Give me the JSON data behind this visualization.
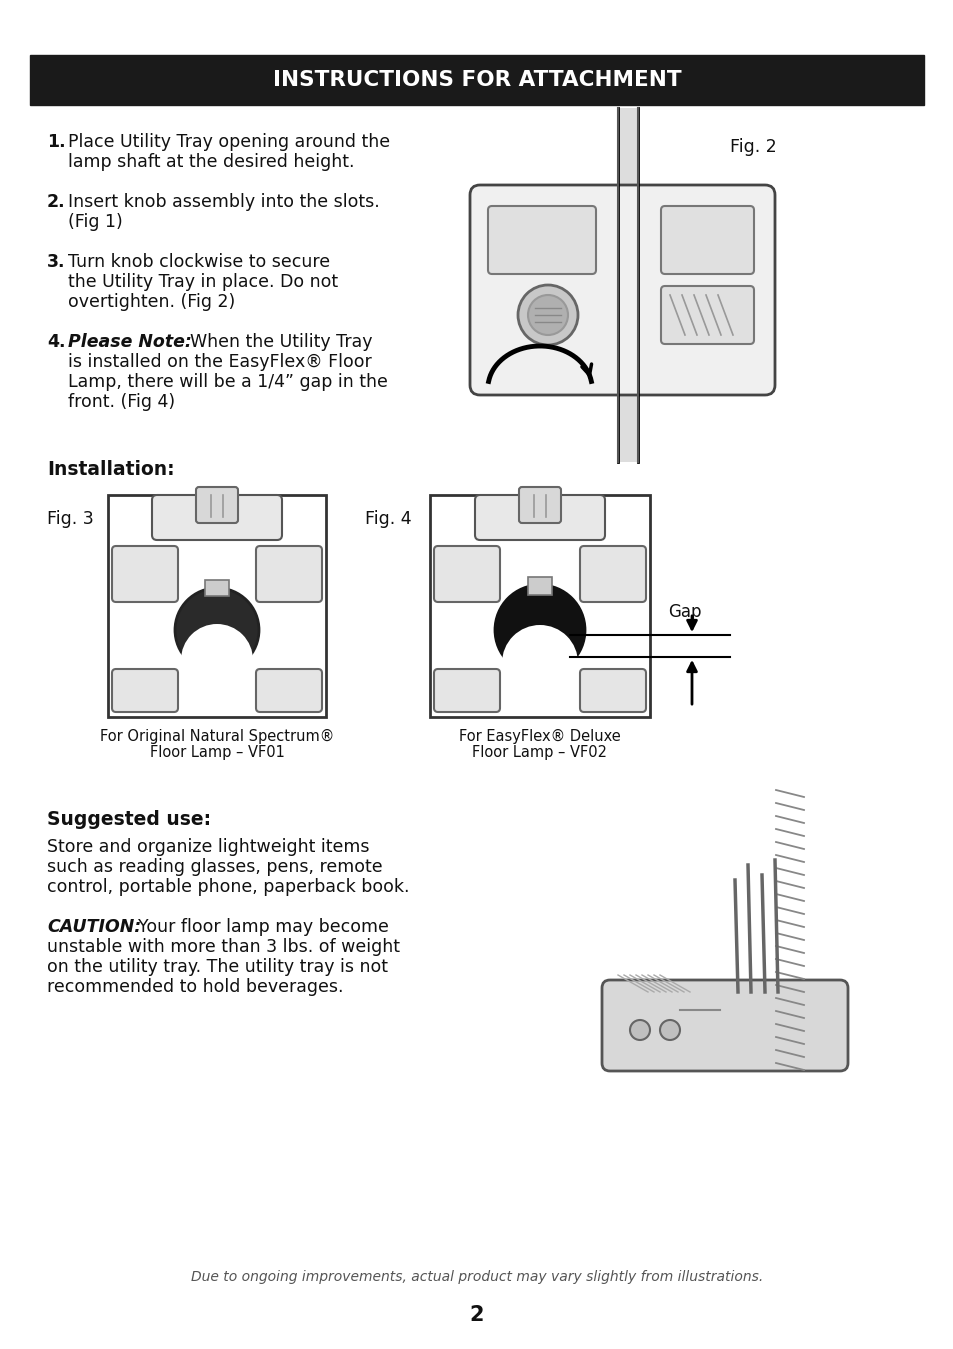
{
  "background_color": "#ffffff",
  "page_width": 9.54,
  "page_height": 13.49,
  "header_text": "INSTRUCTIONS FOR ATTACHMENT",
  "header_bg": "#1a1a1a",
  "header_text_color": "#ffffff",
  "fig2_label": "Fig. 2",
  "installation_label": "Installation:",
  "fig3_label": "Fig. 3",
  "fig4_label": "Fig. 4",
  "gap_label": "Gap",
  "caption3_line1": "For Original Natural Spectrum®",
  "caption3_line2": "Floor Lamp – VF01",
  "caption4_line1": "For EasyFlex® Deluxe",
  "caption4_line2": "Floor Lamp – VF02",
  "suggested_use_bold": "Suggested use:",
  "caution_bold": "CAUTION:",
  "footer_italic": "Due to ongoing improvements, actual product may vary slightly from illustrations.",
  "page_number": "2"
}
